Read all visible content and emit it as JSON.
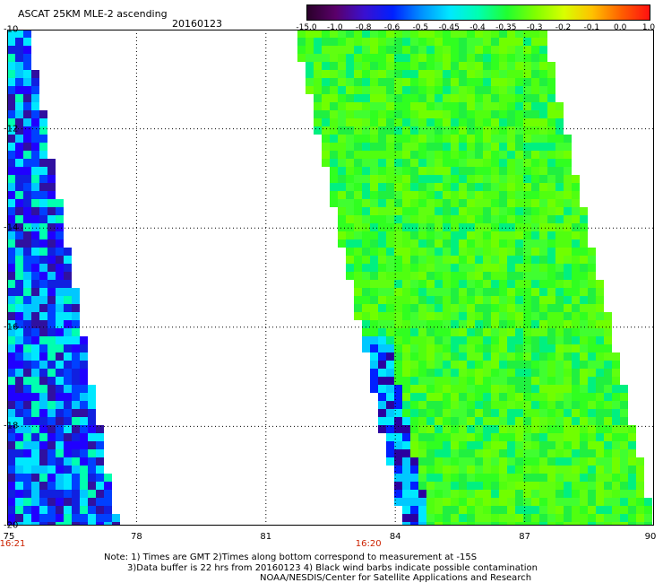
{
  "header": {
    "title": "ASCAT 25KM MLE-2 ascending",
    "date": "20160123"
  },
  "colorbar": {
    "labels": [
      "-15.0",
      "-1.0",
      "-0.8",
      "-0.6",
      "-0.5",
      "-0.45",
      "-0.4",
      "-0.35",
      "-0.3",
      "-0.2",
      "-0.1",
      "0.0",
      "1.0"
    ],
    "colors": [
      "#2a002a",
      "#5a006a",
      "#3a10d0",
      "#0020ff",
      "#0090ff",
      "#00e8ff",
      "#00ffb0",
      "#20ff30",
      "#80ff00",
      "#d8ff00",
      "#ffc000",
      "#ff6000",
      "#ff1010"
    ]
  },
  "map": {
    "x_ticks": [
      "75",
      "78",
      "81",
      "84",
      "87",
      "90"
    ],
    "y_ticks": [
      "-10",
      "-12",
      "-14",
      "-16",
      "-18",
      "-20"
    ],
    "time_labels": [
      {
        "text": "16:21",
        "lon": 75
      },
      {
        "text": "16:20",
        "lon": 84
      }
    ],
    "lon_range": [
      75,
      90
    ],
    "lat_range": [
      -20,
      -10
    ]
  },
  "footer": {
    "line1": "Note: 1) Times are GMT 2)Times along bottom correspond to measurement at -15S",
    "line2": "3)Data buffer is 22 hrs from 20160123 4) Black wind barbs indicate possible contamination",
    "line3": "NOAA/NESDIS/Center for Satellite Applications and Research"
  }
}
